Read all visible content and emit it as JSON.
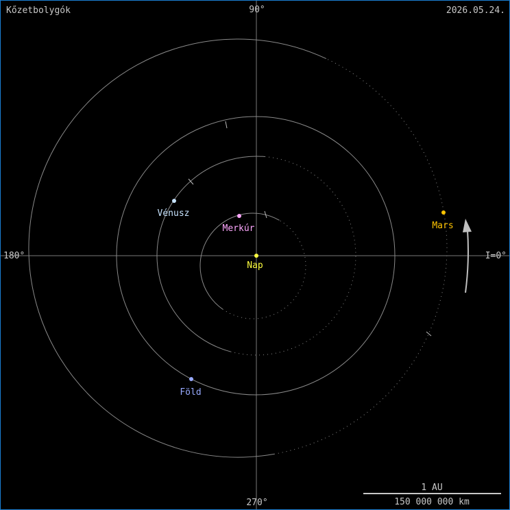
{
  "title": "Kőzetbolygók",
  "date": "2026.05.24.",
  "axis_labels": {
    "top": "90°",
    "left": "180°",
    "bottom": "270°",
    "right": "I=0°"
  },
  "scale": {
    "top": "1 AU",
    "bottom": "150 000 000 km"
  },
  "colors": {
    "axis": "#7a7a7a",
    "orbit": "#8a8a8a",
    "text": "#c8c8c8",
    "border": "#1a7fd4"
  },
  "sun": {
    "label": "Nap",
    "color": "#ffff40"
  },
  "planets": [
    {
      "label": "Merkúr",
      "color": "#ffa8ff"
    },
    {
      "label": "Vénusz",
      "color": "#c8e4ff"
    },
    {
      "label": "Föld",
      "color": "#98aaff"
    },
    {
      "label": "Mars",
      "color": "#ffc400"
    }
  ]
}
